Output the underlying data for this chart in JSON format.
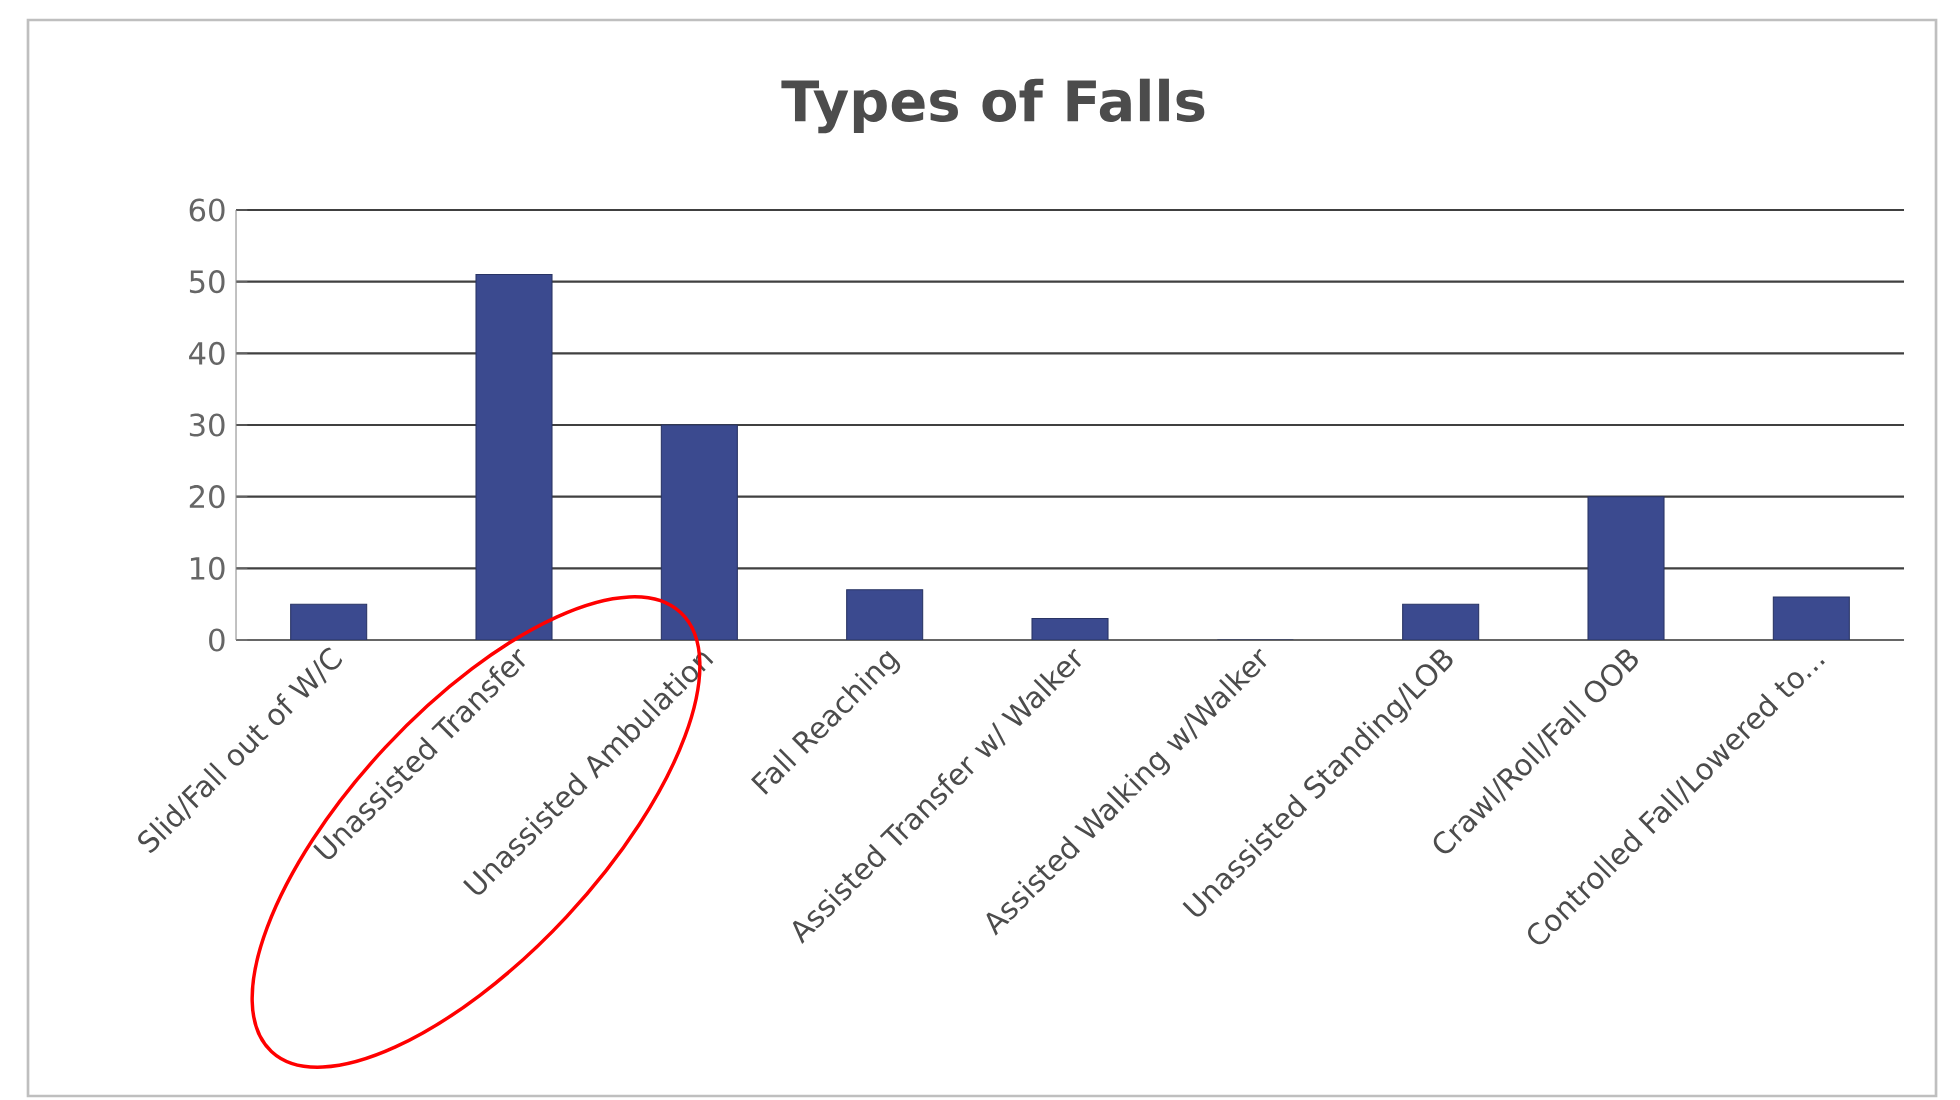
{
  "chart_data": {
    "type": "bar",
    "title": "Types of Falls",
    "categories": [
      "Slid/Fall out of W/C",
      "Unassisted Transfer",
      "Unassisted Ambulation",
      "Fall Reaching",
      "Assisted Transfer w/ Walker",
      "Assisted Walking w/Walker",
      "Unassisted Standing/LOB",
      "Crawl/Roll/Fall OOB",
      "Controlled Fall/Lowered to..."
    ],
    "values": [
      5,
      51,
      30,
      7,
      3,
      0,
      5,
      20,
      6
    ],
    "color": "#3b4a8f",
    "ylim": [
      0,
      60
    ],
    "yticks": [
      0,
      10,
      20,
      30,
      40,
      50,
      60
    ],
    "grid": "y"
  }
}
